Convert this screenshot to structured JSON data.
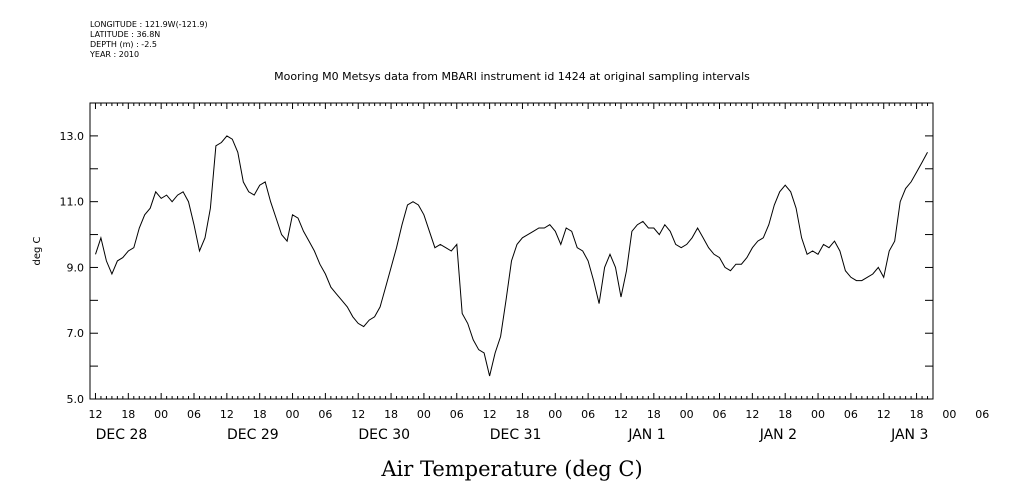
{
  "header": {
    "lines": [
      "LONGITUDE : 121.9W(-121.9)",
      "LATITUDE : 36.8N",
      "DEPTH (m) : -2.5",
      "YEAR : 2010"
    ]
  },
  "chart_data": {
    "type": "line",
    "title": "Mooring M0 Metsys data from MBARI instrument id 1424 at original sampling intervals",
    "xlabel": "Air Temperature (deg C)",
    "ylabel": "deg C",
    "ylim": [
      5.0,
      14.0
    ],
    "xlim_hours": [
      -1,
      153
    ],
    "yticks": [
      5.0,
      7.0,
      9.0,
      11.0,
      13.0
    ],
    "ytick_labels": [
      "5.0",
      "7.0",
      "9.0",
      "11.0",
      "13.0"
    ],
    "xtick_hour_labels": [
      "12",
      "18",
      "00",
      "06",
      "12",
      "18",
      "00",
      "06",
      "12",
      "18",
      "00",
      "06",
      "12",
      "18",
      "00",
      "06",
      "12",
      "18",
      "00",
      "06",
      "12",
      "18",
      "00",
      "06",
      "12",
      "18",
      "00",
      "06",
      "12",
      "18"
    ],
    "date_labels": [
      "DEC 28",
      "DEC 29",
      "DEC 30",
      "DEC 31",
      "JAN  1",
      "JAN  2",
      "JAN  3"
    ],
    "grid": false,
    "series": [
      {
        "x": [
          0,
          1,
          2,
          3,
          4,
          5,
          6,
          7,
          8,
          9,
          10,
          11,
          12,
          13,
          14,
          15,
          16,
          17,
          18,
          19,
          20,
          21,
          22,
          23,
          24,
          25,
          26,
          27,
          28,
          29,
          30,
          31,
          32,
          33,
          34,
          35,
          36,
          37,
          38,
          39,
          40,
          41,
          42,
          43,
          44,
          45,
          46,
          47,
          48,
          49,
          50,
          51,
          52,
          53,
          54,
          55,
          56,
          57,
          58,
          59,
          60,
          61,
          62,
          63,
          64,
          65,
          66,
          67,
          68,
          69,
          70,
          71,
          72,
          73,
          74,
          75,
          76,
          77,
          78,
          79,
          80,
          81,
          82,
          83,
          84,
          85,
          86,
          87,
          88,
          89,
          90,
          91,
          92,
          93,
          94,
          95,
          96,
          97,
          98,
          99,
          100,
          101,
          102,
          103,
          104,
          105,
          106,
          107,
          108,
          109,
          110,
          111,
          112,
          113,
          114,
          115,
          116,
          117,
          118,
          119,
          120,
          121,
          122,
          123,
          124,
          125,
          126,
          127,
          128,
          129,
          130,
          131,
          132,
          133,
          134,
          135,
          136,
          137,
          138,
          139,
          140,
          141,
          142,
          143,
          144,
          145,
          146,
          147,
          148,
          149,
          150,
          151,
          152
        ],
        "y": [
          9.4,
          9.9,
          9.2,
          8.8,
          9.2,
          9.3,
          9.5,
          9.6,
          10.2,
          10.6,
          10.8,
          11.3,
          11.1,
          11.2,
          11.0,
          11.2,
          11.3,
          11.0,
          10.3,
          9.5,
          9.9,
          10.8,
          12.7,
          12.8,
          13.0,
          12.9,
          12.5,
          11.6,
          11.3,
          11.2,
          11.5,
          11.6,
          11.0,
          10.5,
          10.0,
          9.8,
          10.6,
          10.5,
          10.1,
          9.8,
          9.5,
          9.1,
          8.8,
          8.4,
          8.2,
          8.0,
          7.8,
          7.5,
          7.3,
          7.2,
          7.4,
          7.5,
          7.8,
          8.4,
          9.0,
          9.6,
          10.3,
          10.9,
          11.0,
          10.9,
          10.6,
          10.1,
          9.6,
          9.7,
          9.6,
          9.5,
          9.7,
          7.6,
          7.3,
          6.8,
          6.5,
          6.4,
          5.7,
          6.4,
          6.9,
          8.0,
          9.2,
          9.7,
          9.9,
          10.0,
          10.1,
          10.2,
          10.2,
          10.3,
          10.1,
          9.7,
          10.2,
          10.1,
          9.6,
          9.5,
          9.2,
          8.6,
          7.9,
          9.0,
          9.4,
          9.0,
          8.1,
          8.9,
          10.1,
          10.3,
          10.4,
          10.2,
          10.2,
          10.0,
          10.3,
          10.1,
          9.7,
          9.6,
          9.7,
          9.9,
          10.2,
          9.9,
          9.6,
          9.4,
          9.3,
          9.0,
          8.9,
          9.1,
          9.1,
          9.3,
          9.6,
          9.8,
          9.9,
          10.3,
          10.9,
          11.3,
          11.5,
          11.3,
          10.8,
          9.9,
          9.4,
          9.5,
          9.4,
          9.7,
          9.6,
          9.8,
          9.5,
          8.9,
          8.7,
          8.6,
          8.6,
          8.7,
          8.8,
          9.0,
          8.7,
          9.5,
          9.8,
          11.0,
          11.4,
          11.6,
          11.9,
          12.2,
          12.5
        ]
      }
    ]
  }
}
